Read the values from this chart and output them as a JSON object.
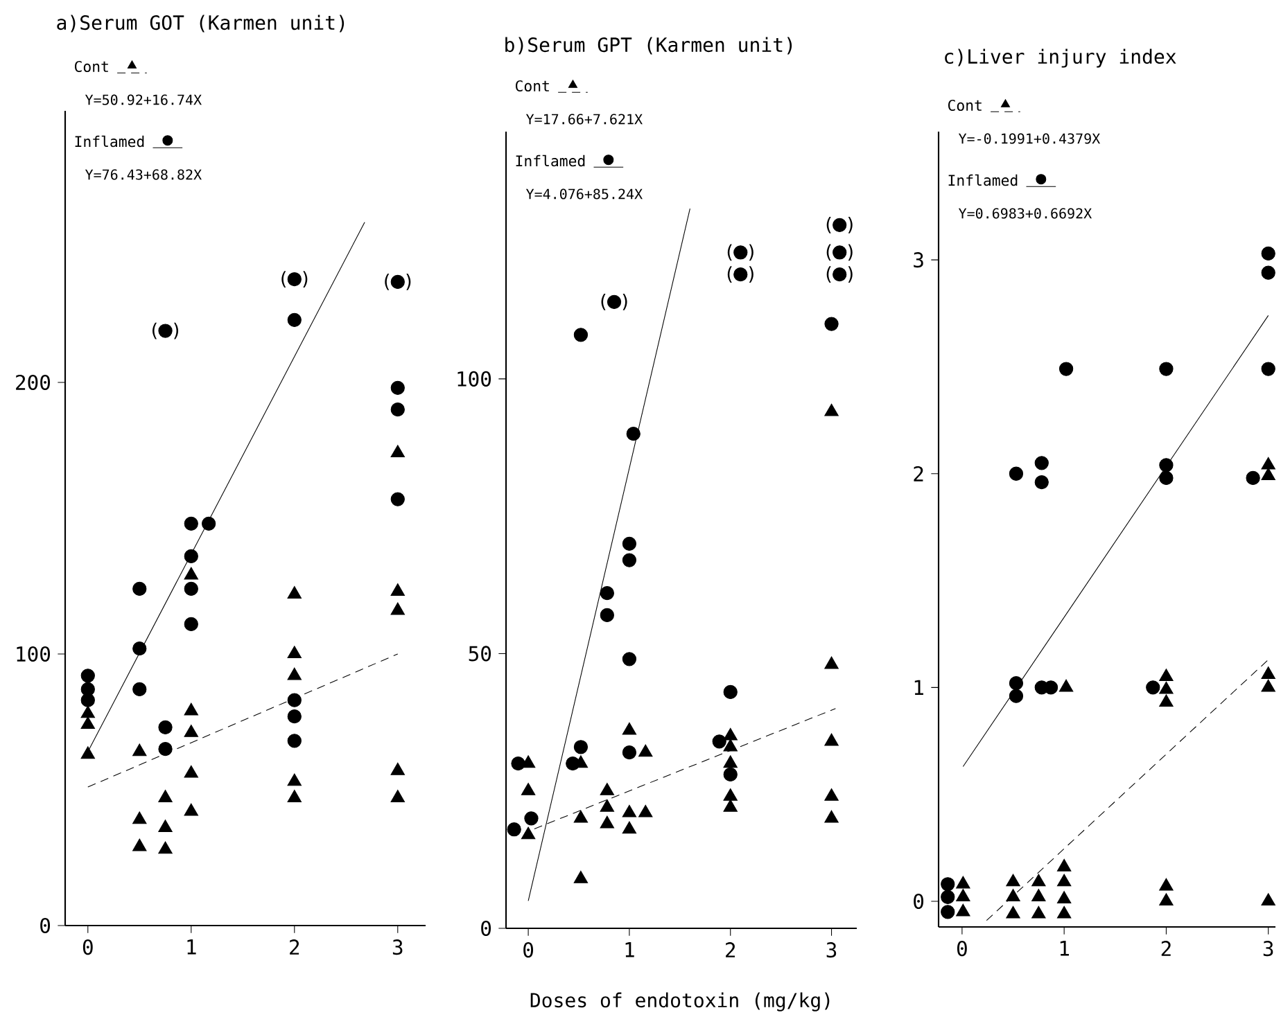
{
  "chart_data": [
    {
      "type": "scatter",
      "title": "a)Serum GOT (Karmen unit)",
      "legend": "top left",
      "xlim": [
        -0.22,
        3.27
      ],
      "ylim": [
        0,
        300
      ],
      "xticks": [
        0,
        1,
        2,
        3
      ],
      "yticks": [
        0,
        100,
        200
      ],
      "series": [
        {
          "name": "Cont",
          "marker": "triangle",
          "color": "#000000",
          "x": [
            0,
            0,
            0,
            0.5,
            0.5,
            0.5,
            0.75,
            0.75,
            0.75,
            1,
            1,
            1,
            1,
            1,
            2,
            2,
            2,
            2,
            2,
            3,
            3,
            3,
            3,
            3
          ],
          "values": [
            78,
            74,
            63,
            64,
            39,
            29,
            47,
            36,
            28,
            129,
            79,
            71,
            56,
            42,
            122,
            100,
            92,
            53,
            47,
            174,
            123,
            116,
            57,
            47
          ]
        },
        {
          "name": "Inflamed",
          "marker": "circle",
          "color": "#000000",
          "x": [
            0,
            0,
            0,
            0.5,
            0.5,
            0.5,
            0.75,
            0.75,
            0.75,
            1,
            1.17,
            1,
            1,
            1,
            2,
            2,
            2,
            2,
            2,
            3,
            3,
            3,
            3
          ],
          "values": [
            92,
            87,
            83,
            124,
            102,
            87,
            219,
            73,
            65,
            148,
            148,
            136,
            124,
            111,
            238,
            223,
            83,
            77,
            68,
            237,
            198,
            190,
            157
          ]
        },
        {
          "type": "line",
          "line_style": "dashed",
          "color": "#000000",
          "x": [
            0,
            3
          ],
          "values": [
            51,
            100
          ]
        },
        {
          "type": "line",
          "line_style": "solid",
          "color": "#000000",
          "x": [
            0,
            2.68
          ],
          "values": [
            64,
            259
          ]
        }
      ],
      "annotations": [
        "Y=50.92+16.74X",
        "Y=76.43+68.82X",
        {
          "text": "( )",
          "x": 0.75,
          "y": 219
        },
        {
          "text": "( )",
          "x": 2,
          "y": 238
        },
        {
          "text": "( )",
          "x": 3,
          "y": 237
        }
      ]
    },
    {
      "type": "scatter",
      "title": "b)Serum GPT (Karmen unit)",
      "legend": "top left",
      "xlabel": "Doses of endotoxin (mg/kg)",
      "xlim": [
        -0.22,
        3.25
      ],
      "ylim": [
        0,
        145
      ],
      "xticks": [
        0,
        1,
        2,
        3
      ],
      "yticks": [
        0,
        50,
        100
      ],
      "series": [
        {
          "name": "Cont",
          "marker": "triangle",
          "color": "#000000",
          "x": [
            0,
            0,
            0,
            0.52,
            0.52,
            0.52,
            0.78,
            0.78,
            0.78,
            1,
            1,
            1,
            1.16,
            1.16,
            2,
            2,
            2,
            2,
            2,
            3,
            3,
            3,
            3,
            3
          ],
          "values": [
            30,
            25,
            17,
            30,
            20,
            9,
            25,
            22,
            19,
            36,
            21,
            18,
            32,
            21,
            35,
            33,
            30,
            24,
            22,
            94,
            48,
            34,
            24,
            20
          ]
        },
        {
          "name": "Inflamed",
          "marker": "circle",
          "color": "#000000",
          "x": [
            -0.14,
            0.03,
            -0.1,
            0.44,
            0.52,
            0.52,
            0.85,
            0.78,
            0.78,
            1.04,
            1,
            1,
            1,
            1,
            2.1,
            2.1,
            2,
            1.89,
            2,
            3.08,
            3.08,
            3.08,
            3
          ],
          "values": [
            18,
            20,
            30,
            30,
            33,
            108,
            114,
            61,
            57,
            90,
            70,
            67,
            49,
            32,
            123,
            119,
            43,
            34,
            28,
            128,
            123,
            119,
            110
          ]
        },
        {
          "type": "line",
          "line_style": "dashed",
          "color": "#000000",
          "x": [
            0.06,
            3.04
          ],
          "values": [
            18.1,
            40
          ]
        },
        {
          "type": "line",
          "line_style": "solid",
          "color": "#000000",
          "x": [
            0,
            1.6
          ],
          "values": [
            5,
            131
          ]
        }
      ],
      "annotations": [
        "Y=17.66+7.621X",
        "Y=4.076+85.24X",
        {
          "text": "( )",
          "x": 0.85,
          "y": 114
        },
        {
          "text": "( )",
          "x": 2.1,
          "y": 123
        },
        {
          "text": "( )",
          "x": 2.1,
          "y": 119
        },
        {
          "text": "( )",
          "x": 3.08,
          "y": 128
        },
        {
          "text": "( )",
          "x": 3.08,
          "y": 123
        },
        {
          "text": "( )",
          "x": 3.08,
          "y": 119
        }
      ]
    },
    {
      "type": "scatter",
      "title": "c)Liver injury index",
      "legend": "top left",
      "xlim": [
        -0.23,
        3.07
      ],
      "ylim": [
        -0.12,
        3.6
      ],
      "xticks": [
        0,
        1,
        2,
        3
      ],
      "yticks": [
        0,
        1,
        2,
        3
      ],
      "series": [
        {
          "name": "Cont",
          "marker": "triangle",
          "color": "#000000",
          "x": [
            0.01,
            0.01,
            0.01,
            0.5,
            0.5,
            0.5,
            0.75,
            0.75,
            0.75,
            1,
            1,
            1,
            1,
            1.02,
            2,
            2,
            2,
            2,
            2,
            3,
            3,
            3,
            3,
            3
          ],
          "values": [
            0.08,
            0.02,
            -0.05,
            0.09,
            0.02,
            -0.06,
            0.09,
            0.02,
            -0.06,
            0.16,
            0.09,
            0.01,
            -0.06,
            1.0,
            1.05,
            0.99,
            0.93,
            0.07,
            0.0,
            2.04,
            1.99,
            1.06,
            1.0,
            0.0
          ]
        },
        {
          "name": "Inflamed",
          "marker": "circle",
          "color": "#000000",
          "x": [
            -0.14,
            -0.14,
            -0.14,
            0.53,
            0.53,
            0.53,
            0.78,
            0.78,
            0.78,
            0.87,
            1.02,
            1.87,
            2,
            2,
            2,
            2.85,
            3,
            3,
            3
          ],
          "values": [
            0.08,
            0.02,
            -0.05,
            1.02,
            0.96,
            2.0,
            2.05,
            1.96,
            1.0,
            1.0,
            2.49,
            1.0,
            2.49,
            2.04,
            1.98,
            1.98,
            3.03,
            2.94,
            2.49
          ]
        },
        {
          "type": "line",
          "line_style": "dashed",
          "color": "#000000",
          "x": [
            0.24,
            3
          ],
          "values": [
            -0.09,
            1.13
          ]
        },
        {
          "type": "line",
          "line_style": "solid",
          "color": "#000000",
          "x": [
            0.01,
            3
          ],
          "values": [
            0.63,
            2.74
          ]
        }
      ],
      "annotations": [
        "Y=-0.1991+0.4379X",
        "Y=0.6983+0.6692X"
      ]
    }
  ]
}
